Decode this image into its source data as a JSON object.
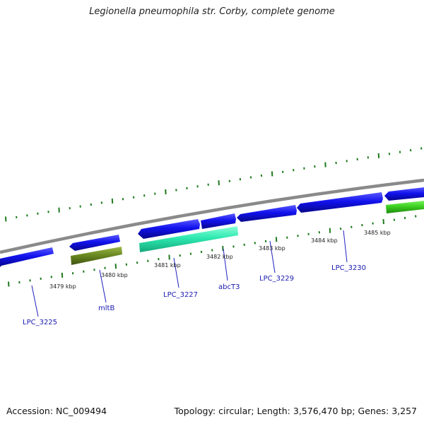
{
  "title": "Legionella pneumophila str. Corby, complete genome",
  "footer": {
    "accession": "Accession: NC_009494",
    "summary": "Topology: circular; Length: 3,576,470 bp; Genes: 3,257"
  },
  "colors": {
    "backbone": "#8a8a8a",
    "gene_default": "#1010e6",
    "gene_mltB": "#6b8a22",
    "gene_abcT3": "#2ee8b0",
    "gene_green": "#3cd020",
    "ticks": "#1e7a1e",
    "label_lines": "#2020c0"
  },
  "tick_labels": [
    "3479 kbp",
    "3480 kbp",
    "3481 kbp",
    "3482 kbp",
    "3483 kbp",
    "3484 kbp",
    "3485 kbp"
  ],
  "gene_labels": [
    "LPC_3225",
    "mltB",
    "LPC_3227",
    "abcT3",
    "LPC_3229",
    "LPC_3230"
  ]
}
